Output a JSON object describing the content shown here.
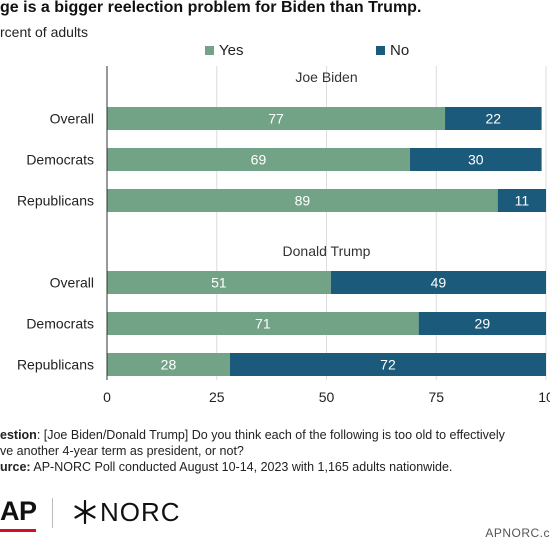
{
  "header": {
    "title": "ge is a bigger reelection problem for Biden than Trump.",
    "subtitle": "rcent of adults"
  },
  "colors": {
    "yes": "#73a387",
    "no": "#1c5a7c",
    "gridline": "#dcdcdc"
  },
  "chart_data": {
    "type": "bar",
    "orientation": "horizontal",
    "stacked": true,
    "legend": [
      "Yes",
      "No"
    ],
    "legend_position": "top",
    "xlim": [
      0,
      100
    ],
    "xticks": [
      "0",
      "25",
      "50",
      "75",
      "10"
    ],
    "grid": true,
    "groups": [
      {
        "title": "Joe Biden",
        "categories": [
          "Overall",
          "Democrats",
          "Republicans"
        ],
        "series": [
          {
            "name": "Yes",
            "values": [
              77,
              69,
              89
            ]
          },
          {
            "name": "No",
            "values": [
              22,
              30,
              11
            ]
          }
        ]
      },
      {
        "title": "Donald Trump",
        "categories": [
          "Overall",
          "Democrats",
          "Republicans"
        ],
        "series": [
          {
            "name": "Yes",
            "values": [
              51,
              71,
              28
            ]
          },
          {
            "name": "No",
            "values": [
              49,
              29,
              72
            ]
          }
        ]
      }
    ]
  },
  "footnote": {
    "question_label": "estion",
    "question_line1": ": [Joe Biden/Donald Trump] Do you think each of the following is too old to effectively",
    "question_line2": "ve another 4-year term as president, or not?",
    "source_label": "urce:",
    "source_text": " AP-NORC Poll conducted August 10-14, 2023 with 1,165 adults nationwide."
  },
  "branding": {
    "ap_logo": "AP",
    "norc_logo": "NORC",
    "site": "APNORC.c"
  }
}
